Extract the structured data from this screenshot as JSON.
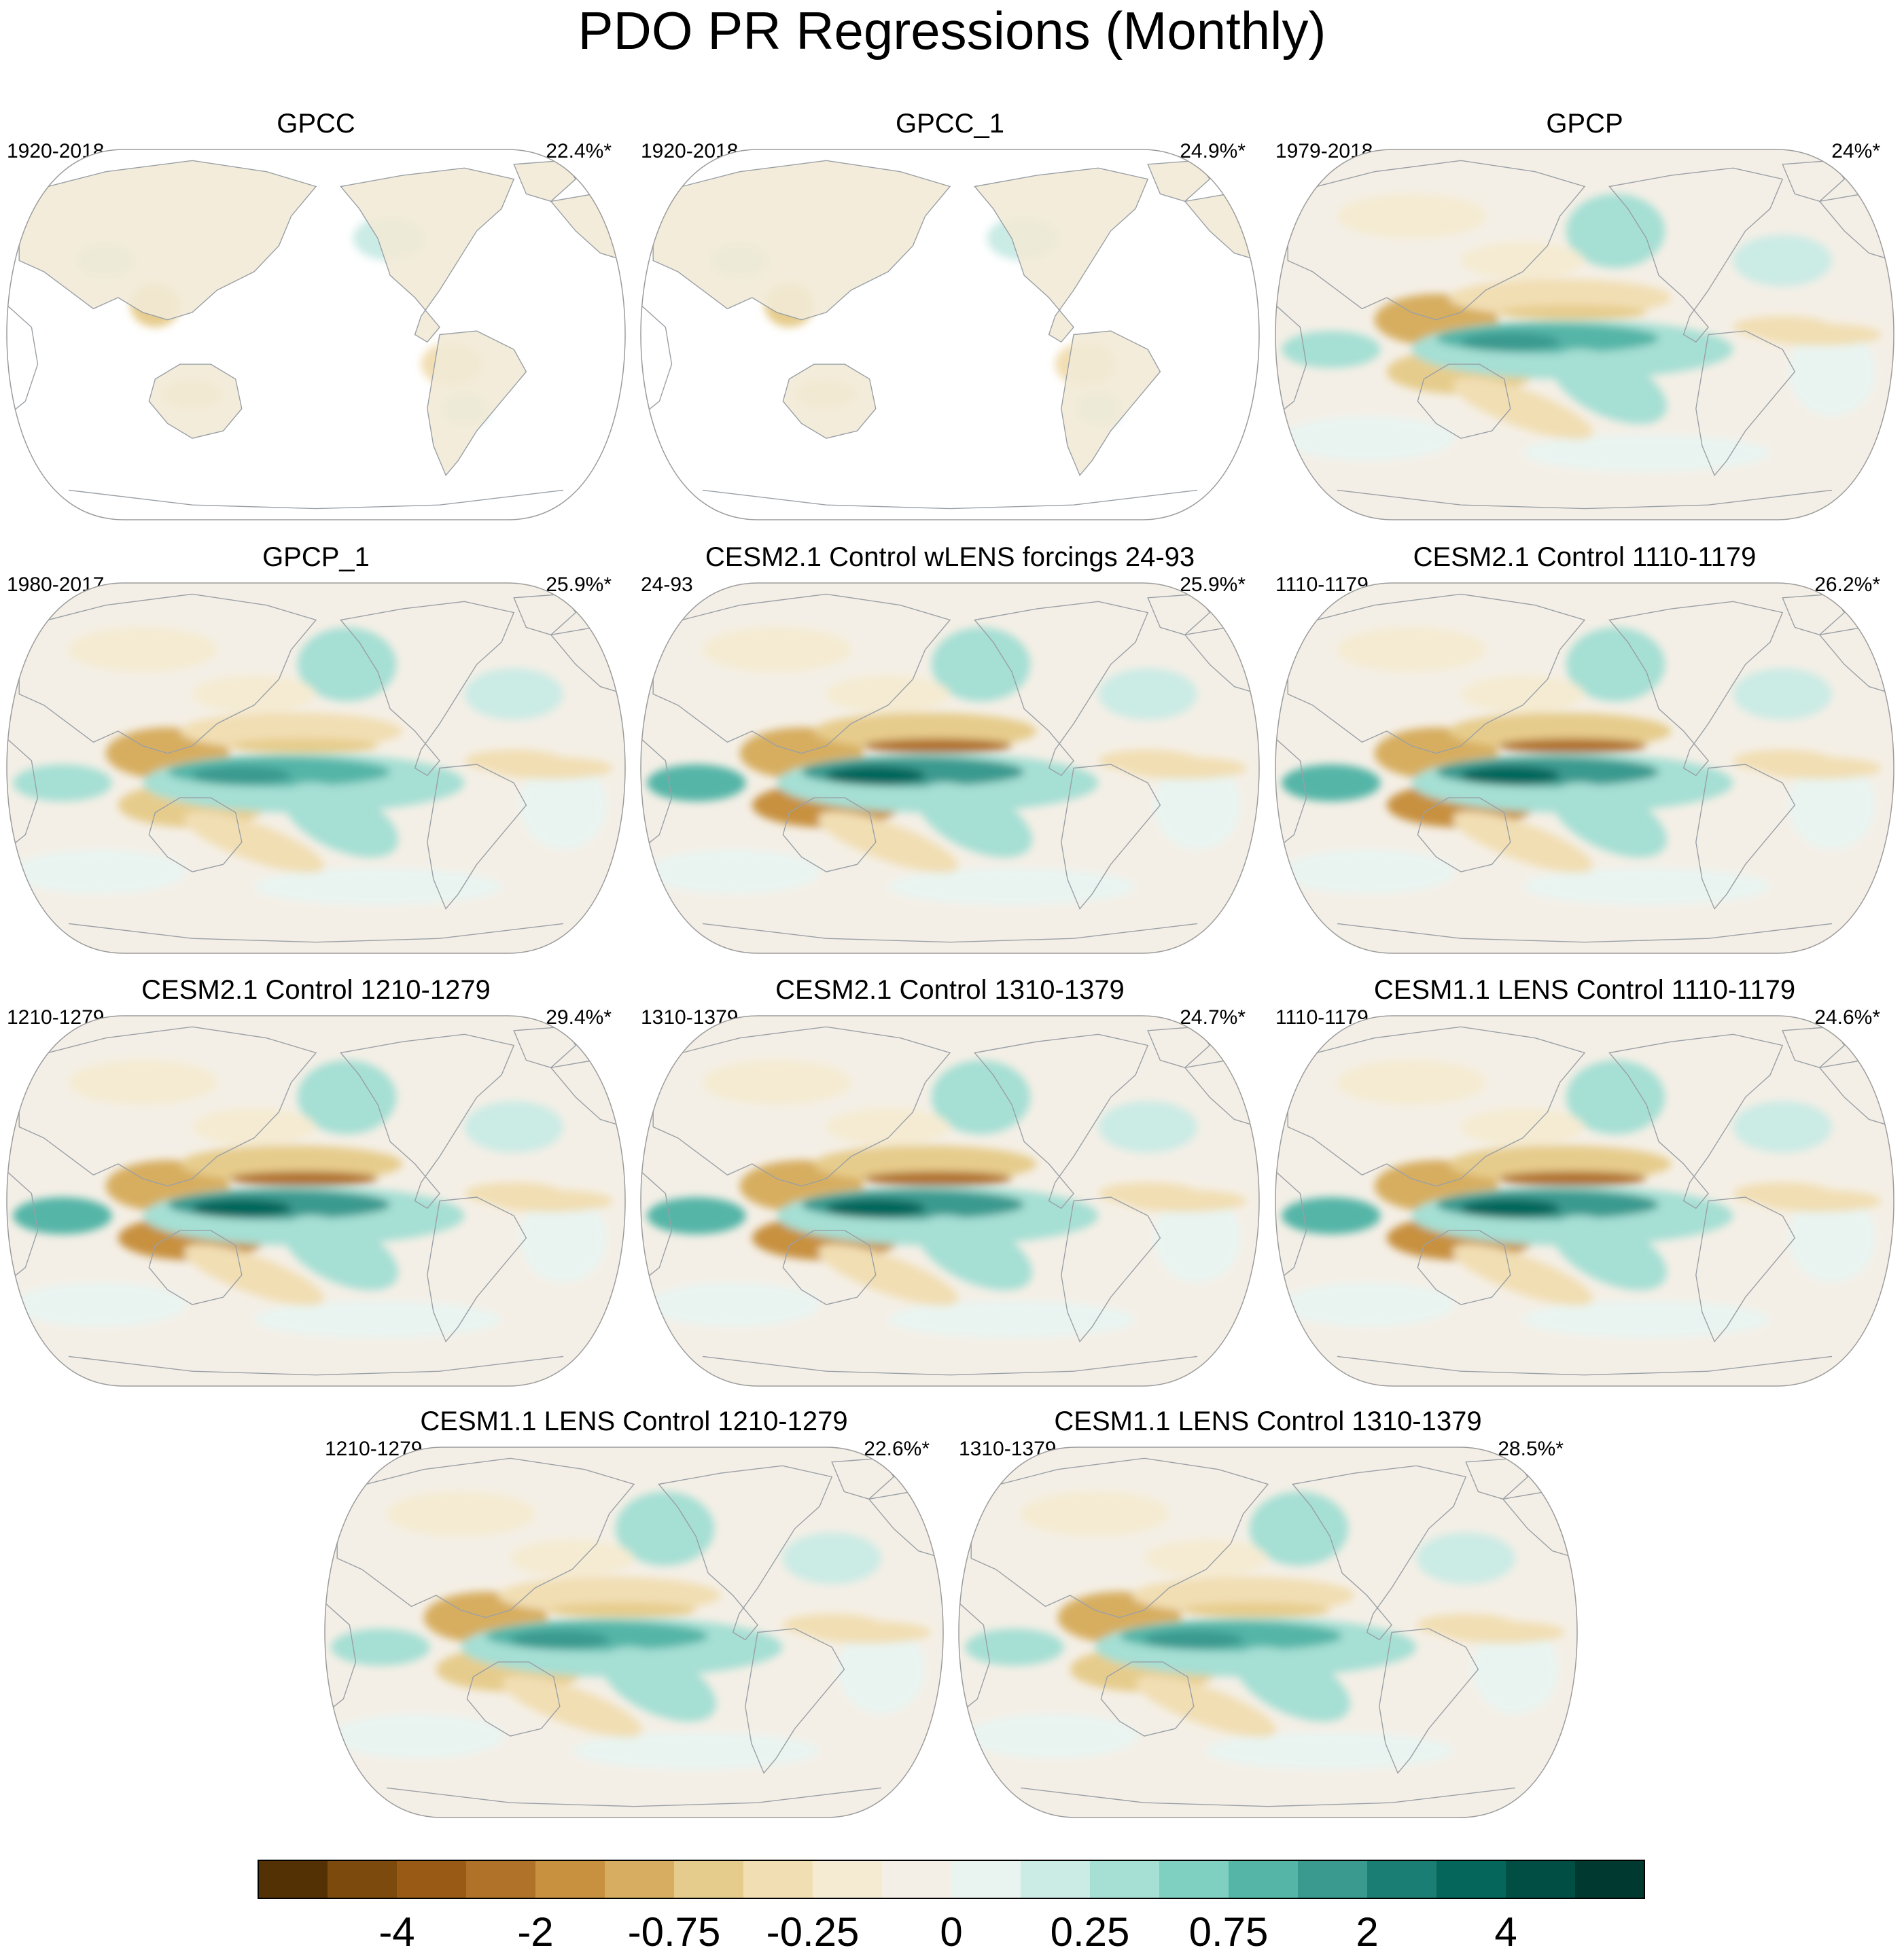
{
  "title": "PDO PR Regressions (Monthly)",
  "colors": {
    "land": "#f2ead6",
    "ocean_neutral": "#f4efe6",
    "coast": "#9aa0a6",
    "outline": "#9c9c9c"
  },
  "chart_data": {
    "type": "map-panel-grid",
    "projection": "Robinson-like global map, Pacific-centered",
    "panels": [
      {
        "name": "GPCC",
        "years": "1920-2018",
        "pct": "22.4%*",
        "land_only": true,
        "strength": 0.25
      },
      {
        "name": "GPCC_1",
        "years": "1920-2018",
        "pct": "24.9%*",
        "land_only": true,
        "strength": 0.25
      },
      {
        "name": "GPCP",
        "years": "1979-2018",
        "pct": "24%*",
        "land_only": false,
        "strength": 0.75
      },
      {
        "name": "GPCP_1",
        "years": "1980-2017",
        "pct": "25.9%*",
        "land_only": false,
        "strength": 0.8
      },
      {
        "name": "CESM2.1 Control wLENS forcings 24-93",
        "years": "24-93",
        "pct": "25.9%*",
        "land_only": false,
        "strength": 0.9
      },
      {
        "name": "CESM2.1 Control 1110-1179",
        "years": "1110-1179",
        "pct": "26.2%*",
        "land_only": false,
        "strength": 0.95
      },
      {
        "name": "CESM2.1 Control 1210-1279",
        "years": "1210-1279",
        "pct": "29.4%*",
        "land_only": false,
        "strength": 1.0
      },
      {
        "name": "CESM2.1 Control 1310-1379",
        "years": "1310-1379",
        "pct": "24.7%*",
        "land_only": false,
        "strength": 0.9
      },
      {
        "name": "CESM1.1 LENS Control 1110-1179",
        "years": "1110-1179",
        "pct": "24.6%*",
        "land_only": false,
        "strength": 0.9
      },
      {
        "name": "CESM1.1 LENS Control 1210-1279",
        "years": "1210-1279",
        "pct": "22.6%*",
        "land_only": false,
        "strength": 0.8
      },
      {
        "name": "CESM1.1 LENS Control 1310-1379",
        "years": "1310-1379",
        "pct": "28.5%*",
        "land_only": false,
        "strength": 0.85
      }
    ],
    "colorbar": {
      "colors": [
        "#543005",
        "#7d4a0d",
        "#985a14",
        "#b07129",
        "#c8913f",
        "#d7ae61",
        "#e6cc8c",
        "#f1deb3",
        "#f5ebd2",
        "#f4efe6",
        "#e9f4f1",
        "#cbebe5",
        "#a6dfd4",
        "#80d0c2",
        "#55b5a7",
        "#3a9a8f",
        "#1b7e74",
        "#05665b",
        "#004e44",
        "#00392f"
      ],
      "tick_labels": [
        "-4",
        "-2",
        "-0.75",
        "-0.25",
        "0",
        "0.25",
        "0.75",
        "2",
        "4"
      ],
      "tick_boundaries": [
        2,
        4,
        6,
        8,
        10,
        12,
        14,
        16,
        18
      ]
    }
  }
}
